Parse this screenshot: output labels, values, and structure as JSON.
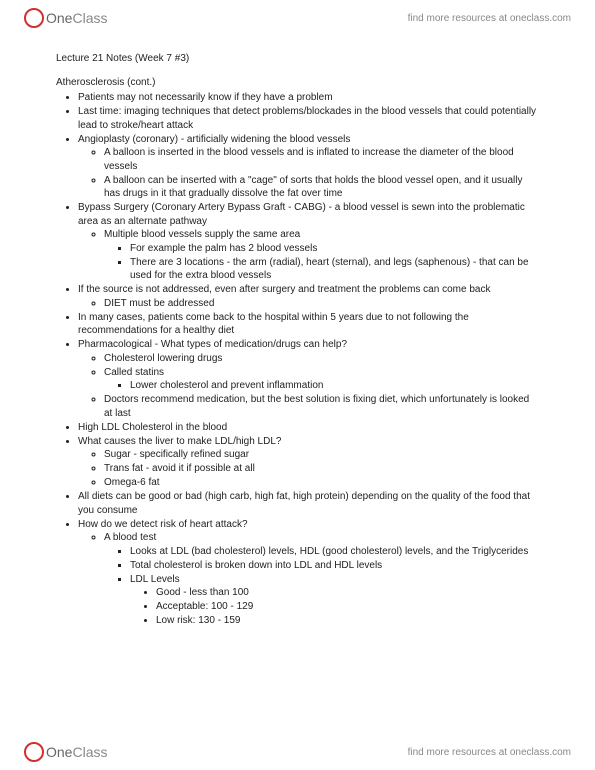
{
  "brand": {
    "name_a": "One",
    "name_b": "Class"
  },
  "tagline": "find more resources at oneclass.com",
  "title": "Lecture 21 Notes (Week 7 #3)",
  "section": "Atherosclerosis (cont.)",
  "b1": "Patients may not necessarily know if they have a problem",
  "b2": "Last time: imaging techniques that detect problems/blockades in the blood vessels that could potentially lead to stroke/heart attack",
  "b3": "Angioplasty (coronary) - artificially widening the blood vessels",
  "b3a": "A balloon is inserted in the blood vessels and is inflated to increase the diameter of the blood vessels",
  "b3b": "A balloon can be inserted with a \"cage\" of sorts that holds the blood vessel open, and it usually has drugs in it that gradually dissolve the fat over time",
  "b4": "Bypass Surgery (Coronary Artery Bypass Graft - CABG) - a blood vessel is sewn into the problematic area as an alternate pathway",
  "b4a": "Multiple blood vessels supply the same area",
  "b4a1": "For example the palm has 2 blood vessels",
  "b4a2": "There are 3 locations - the arm (radial), heart (sternal), and legs (saphenous) - that can be used for the extra blood vessels",
  "b5": "If the source is not addressed, even after surgery and treatment the problems can come back",
  "b5a": "DIET must be addressed",
  "b6": "In many cases, patients come back to the hospital within 5 years due to not following the recommendations for a healthy diet",
  "b7": "Pharmacological - What types of medication/drugs can help?",
  "b7a": "Cholesterol lowering drugs",
  "b7b": "Called statins",
  "b7b1": "Lower cholesterol and prevent inflammation",
  "b7c": "Doctors recommend medication, but the best solution is fixing diet, which unfortunately is looked at last",
  "b8": "High LDL Cholesterol in the blood",
  "b9": "What causes the liver to make LDL/high LDL?",
  "b9a": "Sugar - specifically refined sugar",
  "b9b": "Trans fat - avoid it if possible at all",
  "b9c": "Omega-6 fat",
  "b10": "All diets can be good or bad (high carb, high fat, high protein) depending on the quality of the food that you consume",
  "b11": "How do we detect risk of heart attack?",
  "b11a": "A blood test",
  "b11a1": "Looks at LDL (bad cholesterol) levels, HDL (good cholesterol) levels, and the Triglycerides",
  "b11a2": "Total cholesterol is broken down into LDL and HDL levels",
  "b11a3": "LDL Levels",
  "b11a3a": "Good - less than 100",
  "b11a3b": "Acceptable:  100 - 129",
  "b11a3c": "Low risk: 130 - 159"
}
